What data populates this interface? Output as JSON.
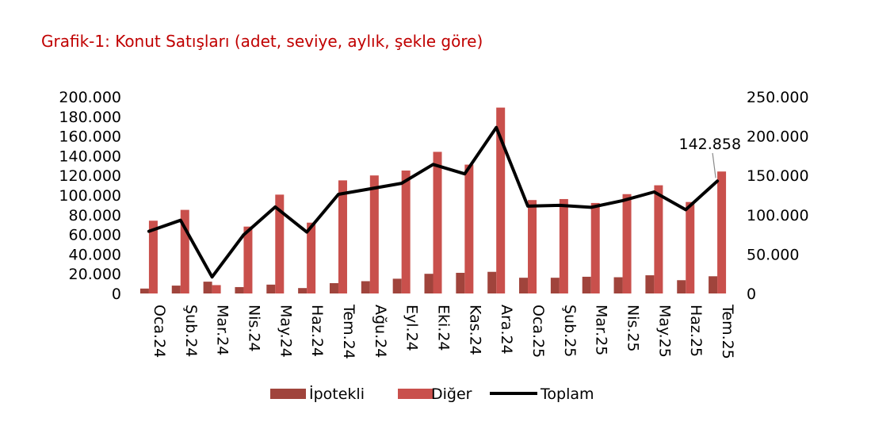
{
  "chart_data": {
    "type": "bar",
    "title": "Grafik-1: Konut Satışları (adet, seviye, aylık, şekle göre)",
    "categories": [
      "Oca.24",
      "Şub.24",
      "Mar.24",
      "Nis.24",
      "May.24",
      "Haz.24",
      "Tem.24",
      "Ağu.24",
      "Eyl.24",
      "Eki.24",
      "Kas.24",
      "Ara.24",
      "Oca.25",
      "Şub.25",
      "Mar.25",
      "Nis.25",
      "May.25",
      "Haz.25",
      "Tem.25"
    ],
    "series": [
      {
        "name": "İpotekli",
        "type": "bar",
        "axis": "left",
        "color": "#a0443c",
        "values": [
          5000,
          8000,
          12000,
          6500,
          9000,
          5500,
          10500,
          12500,
          15000,
          20000,
          21000,
          22000,
          16000,
          16000,
          17000,
          16500,
          18500,
          13500,
          17500
        ]
      },
      {
        "name": "Diğer",
        "type": "bar",
        "axis": "left",
        "color": "#c9504c",
        "values": [
          74000,
          85000,
          8500,
          68000,
          100500,
          72000,
          115000,
          120000,
          125000,
          144000,
          131000,
          189000,
          95000,
          96000,
          92000,
          101000,
          110000,
          93000,
          124000
        ]
      },
      {
        "name": "Toplam",
        "type": "line",
        "axis": "right",
        "color": "#000000",
        "values": [
          79000,
          93000,
          21000,
          74500,
          110000,
          78000,
          126000,
          133000,
          140000,
          164000,
          152000,
          211000,
          111000,
          112000,
          109500,
          118000,
          129000,
          106500,
          142858
        ]
      }
    ],
    "y_left": {
      "min": 0,
      "max": 200000,
      "ticks": [
        "0",
        "20.000",
        "40.000",
        "60.000",
        "80.000",
        "100.000",
        "120.000",
        "140.000",
        "160.000",
        "180.000",
        "200.000"
      ]
    },
    "y_right": {
      "min": 0,
      "max": 250000,
      "ticks": [
        "0",
        "50.000",
        "100.000",
        "150.000",
        "200.000",
        "250.000"
      ]
    },
    "annotation": {
      "text": "142.858",
      "category": "Tem.25",
      "series": "Toplam"
    },
    "legend": {
      "position": "bottom",
      "items": [
        "İpotekli",
        "Diğer",
        "Toplam"
      ]
    },
    "grid": false
  }
}
